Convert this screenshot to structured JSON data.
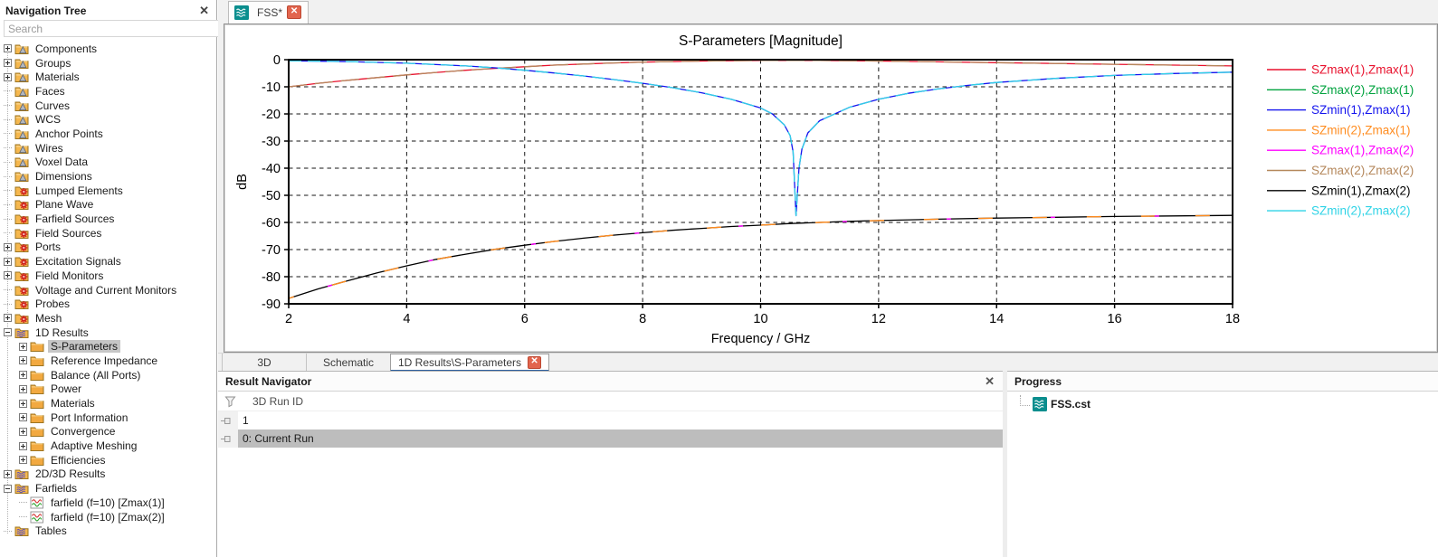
{
  "navigation_tree": {
    "title": "Navigation Tree",
    "search_placeholder": "Search",
    "items": [
      {
        "label": "Components",
        "level": 0,
        "expander": "plus",
        "icon": "folder-cone"
      },
      {
        "label": "Groups",
        "level": 0,
        "expander": "plus",
        "icon": "folder-cone"
      },
      {
        "label": "Materials",
        "level": 0,
        "expander": "plus",
        "icon": "folder-cone"
      },
      {
        "label": "Faces",
        "level": 0,
        "expander": "none",
        "icon": "folder-cone"
      },
      {
        "label": "Curves",
        "level": 0,
        "expander": "none",
        "icon": "folder-cone"
      },
      {
        "label": "WCS",
        "level": 0,
        "expander": "none",
        "icon": "folder-cone"
      },
      {
        "label": "Anchor Points",
        "level": 0,
        "expander": "none",
        "icon": "folder-cone"
      },
      {
        "label": "Wires",
        "level": 0,
        "expander": "none",
        "icon": "folder-cone"
      },
      {
        "label": "Voxel Data",
        "level": 0,
        "expander": "none",
        "icon": "folder-cone"
      },
      {
        "label": "Dimensions",
        "level": 0,
        "expander": "none",
        "icon": "folder-cone"
      },
      {
        "label": "Lumped Elements",
        "level": 0,
        "expander": "none",
        "icon": "folder-star"
      },
      {
        "label": "Plane Wave",
        "level": 0,
        "expander": "none",
        "icon": "folder-star"
      },
      {
        "label": "Farfield Sources",
        "level": 0,
        "expander": "none",
        "icon": "folder-star"
      },
      {
        "label": "Field Sources",
        "level": 0,
        "expander": "none",
        "icon": "folder-star"
      },
      {
        "label": "Ports",
        "level": 0,
        "expander": "plus",
        "icon": "folder-star"
      },
      {
        "label": "Excitation Signals",
        "level": 0,
        "expander": "plus",
        "icon": "folder-star"
      },
      {
        "label": "Field Monitors",
        "level": 0,
        "expander": "plus",
        "icon": "folder-star"
      },
      {
        "label": "Voltage and Current Monitors",
        "level": 0,
        "expander": "none",
        "icon": "folder-star"
      },
      {
        "label": "Probes",
        "level": 0,
        "expander": "none",
        "icon": "folder-star"
      },
      {
        "label": "Mesh",
        "level": 0,
        "expander": "plus",
        "icon": "folder-star"
      },
      {
        "label": "1D Results",
        "level": 0,
        "expander": "minus",
        "icon": "folder-waves"
      },
      {
        "label": "S-Parameters",
        "level": 1,
        "expander": "plus",
        "icon": "folder",
        "selected": true
      },
      {
        "label": "Reference Impedance",
        "level": 1,
        "expander": "plus",
        "icon": "folder"
      },
      {
        "label": "Balance (All Ports)",
        "level": 1,
        "expander": "plus",
        "icon": "folder"
      },
      {
        "label": "Power",
        "level": 1,
        "expander": "plus",
        "icon": "folder"
      },
      {
        "label": "Materials",
        "level": 1,
        "expander": "plus",
        "icon": "folder"
      },
      {
        "label": "Port Information",
        "level": 1,
        "expander": "plus",
        "icon": "folder"
      },
      {
        "label": "Convergence",
        "level": 1,
        "expander": "plus",
        "icon": "folder"
      },
      {
        "label": "Adaptive Meshing",
        "level": 1,
        "expander": "plus",
        "icon": "folder"
      },
      {
        "label": "Efficiencies",
        "level": 1,
        "expander": "plus",
        "icon": "folder"
      },
      {
        "label": "2D/3D Results",
        "level": 0,
        "expander": "plus",
        "icon": "folder-waves"
      },
      {
        "label": "Farfields",
        "level": 0,
        "expander": "minus",
        "icon": "folder-waves"
      },
      {
        "label": "farfield (f=10) [Zmax(1)]",
        "level": 1,
        "expander": "none",
        "icon": "chart"
      },
      {
        "label": "farfield (f=10) [Zmax(2)]",
        "level": 1,
        "expander": "none",
        "icon": "chart"
      },
      {
        "label": "Tables",
        "level": 0,
        "expander": "none",
        "icon": "folder-waves"
      }
    ]
  },
  "document_tabs": [
    {
      "label": "FSS*",
      "icon": "waves-teal",
      "active": true,
      "closable": true
    }
  ],
  "view_tabs": [
    {
      "label": "3D",
      "active": false,
      "closable": false
    },
    {
      "label": "Schematic",
      "active": false,
      "closable": false
    },
    {
      "label": "1D Results\\S-Parameters",
      "active": true,
      "closable": true
    }
  ],
  "chart_data": {
    "type": "line",
    "title": "S-Parameters [Magnitude]",
    "xlabel": "Frequency / GHz",
    "ylabel": "dB",
    "xlim": [
      2,
      18
    ],
    "ylim": [
      -90,
      0
    ],
    "xticks": [
      2,
      4,
      6,
      8,
      10,
      12,
      14,
      16,
      18
    ],
    "yticks": [
      0,
      -10,
      -20,
      -30,
      -40,
      -50,
      -60,
      -70,
      -80,
      -90
    ],
    "grid": "dashed",
    "legend_position": "right",
    "series": [
      {
        "name": "SZmax(1),Zmax(1)",
        "color": "#e8112d",
        "curve": "reflection"
      },
      {
        "name": "SZmax(2),Zmax(1)",
        "color": "#00a33e",
        "curve": "cross"
      },
      {
        "name": "SZmin(1),Zmax(1)",
        "color": "#1414ee",
        "curve": "transmission"
      },
      {
        "name": "SZmin(2),Zmax(1)",
        "color": "#ff8c1f",
        "curve": "cross"
      },
      {
        "name": "SZmax(1),Zmax(2)",
        "color": "#ff00ff",
        "curve": "cross"
      },
      {
        "name": "SZmax(2),Zmax(2)",
        "color": "#b5885c",
        "curve": "reflection"
      },
      {
        "name": "SZmin(1),Zmax(2)",
        "color": "#000000",
        "curve": "cross"
      },
      {
        "name": "SZmin(2),Zmax(2)",
        "color": "#2fd3e6",
        "curve": "transmission"
      }
    ],
    "curves": {
      "reflection": [
        [
          2,
          -10
        ],
        [
          2.5,
          -8.7
        ],
        [
          3,
          -7.6
        ],
        [
          3.5,
          -6.6
        ],
        [
          4,
          -5.6
        ],
        [
          4.5,
          -4.7
        ],
        [
          5,
          -3.9
        ],
        [
          5.5,
          -3.2
        ],
        [
          6,
          -2.6
        ],
        [
          6.5,
          -2.0
        ],
        [
          7,
          -1.6
        ],
        [
          7.5,
          -1.2
        ],
        [
          8,
          -0.9
        ],
        [
          9,
          -0.5
        ],
        [
          10,
          -0.3
        ],
        [
          10.6,
          -0.25
        ],
        [
          11,
          -0.3
        ],
        [
          12,
          -0.5
        ],
        [
          13,
          -0.8
        ],
        [
          14,
          -1.1
        ],
        [
          15,
          -1.4
        ],
        [
          16,
          -1.7
        ],
        [
          17,
          -2.0
        ],
        [
          18,
          -2.3
        ]
      ],
      "transmission": [
        [
          2,
          -0.4
        ],
        [
          3,
          -0.7
        ],
        [
          4,
          -1.3
        ],
        [
          5,
          -2.3
        ],
        [
          5.5,
          -3.0
        ],
        [
          6,
          -3.9
        ],
        [
          6.5,
          -4.9
        ],
        [
          7,
          -6.0
        ],
        [
          7.5,
          -7.3
        ],
        [
          8,
          -8.7
        ],
        [
          8.5,
          -10.3
        ],
        [
          9,
          -12.2
        ],
        [
          9.5,
          -14.6
        ],
        [
          10,
          -17.8
        ],
        [
          10.2,
          -20
        ],
        [
          10.4,
          -24
        ],
        [
          10.5,
          -28
        ],
        [
          10.55,
          -34
        ],
        [
          10.6,
          -57.5
        ],
        [
          10.65,
          -40
        ],
        [
          10.7,
          -33
        ],
        [
          10.8,
          -27
        ],
        [
          11,
          -22.5
        ],
        [
          11.5,
          -17.6
        ],
        [
          12,
          -14.6
        ],
        [
          12.5,
          -12.4
        ],
        [
          13,
          -10.8
        ],
        [
          13.5,
          -9.5
        ],
        [
          14,
          -8.4
        ],
        [
          15,
          -6.9
        ],
        [
          16,
          -5.8
        ],
        [
          17,
          -5.1
        ],
        [
          18,
          -4.6
        ]
      ],
      "cross": [
        [
          2,
          -88
        ],
        [
          2.5,
          -84.5
        ],
        [
          3,
          -81.5
        ],
        [
          3.5,
          -78.6
        ],
        [
          4,
          -76
        ],
        [
          4.5,
          -73.6
        ],
        [
          5,
          -71.7
        ],
        [
          5.5,
          -69.9
        ],
        [
          6,
          -68.4
        ],
        [
          6.5,
          -67
        ],
        [
          7,
          -65.8
        ],
        [
          7.5,
          -64.7
        ],
        [
          8,
          -63.8
        ],
        [
          8.5,
          -62.9
        ],
        [
          9,
          -62.2
        ],
        [
          9.5,
          -61.5
        ],
        [
          10,
          -61
        ],
        [
          10.5,
          -60.4
        ],
        [
          11,
          -60
        ],
        [
          11.5,
          -59.6
        ],
        [
          12,
          -59.3
        ],
        [
          13,
          -58.8
        ],
        [
          14,
          -58.4
        ],
        [
          15,
          -58.1
        ],
        [
          16,
          -57.8
        ],
        [
          17,
          -57.6
        ],
        [
          18,
          -57.4
        ]
      ]
    },
    "render_order": [
      {
        "curve": "cross",
        "color": "#000000",
        "width": 1.3
      },
      {
        "curve": "cross",
        "color": "#ff8c1f",
        "width": 1.4,
        "dash": "16 44",
        "dashoffset": 10
      },
      {
        "curve": "cross",
        "color": "#ff00ff",
        "width": 1.4,
        "dash": "5 110",
        "dashoffset": 70
      },
      {
        "curve": "reflection",
        "color": "#e8112d",
        "width": 1.3
      },
      {
        "curve": "reflection",
        "color": "#b5885c",
        "width": 1.3,
        "dash": "20 9"
      },
      {
        "curve": "transmission",
        "color": "#1414ee",
        "width": 1.3
      },
      {
        "curve": "transmission",
        "color": "#2fd3e6",
        "width": 1.3,
        "dash": "14 7"
      }
    ]
  },
  "result_navigator": {
    "title": "Result Navigator",
    "filter_label": "3D Run ID",
    "rows": [
      {
        "label": "1",
        "selected": false
      },
      {
        "label": "0: Current Run",
        "selected": true
      }
    ]
  },
  "progress": {
    "title": "Progress",
    "items": [
      {
        "label": "FSS.cst",
        "icon": "waves-teal"
      }
    ]
  }
}
